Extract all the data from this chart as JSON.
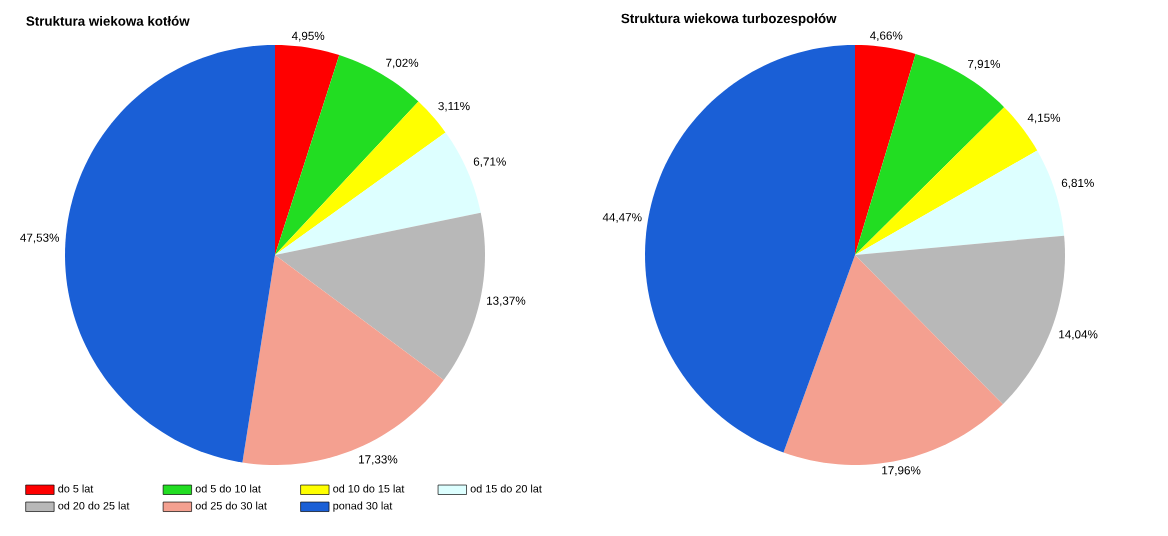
{
  "chart_data": [
    {
      "type": "pie",
      "title": "Struktura wiekowa kotłów",
      "legend": "bottom",
      "categories": [
        "do 5 lat",
        "od 5 do 10 lat",
        "od 10 do 15 lat",
        "od 15 do 20 lat",
        "od 20 do 25 lat",
        "od 25 do 30 lat",
        "ponad 30 lat"
      ],
      "values": [
        4.95,
        7.02,
        3.11,
        6.71,
        13.37,
        17.33,
        47.53
      ],
      "value_labels": [
        "4,95%",
        "7,02%",
        "3,11%",
        "6,71%",
        "13,37%",
        "17,33%",
        "47,53%"
      ],
      "colors": [
        "#ff0000",
        "#22dd22",
        "#ffff00",
        "#ddffff",
        "#b8b8b8",
        "#f4a090",
        "#1a5fd6"
      ]
    },
    {
      "type": "pie",
      "title": "Struktura wiekowa turbozespołów",
      "categories": [
        null,
        null,
        null,
        null,
        null,
        null,
        null
      ],
      "values": [
        4.66,
        7.91,
        4.15,
        6.81,
        14.04,
        17.96,
        44.47
      ],
      "value_labels": [
        "4,66%",
        "7,91%",
        "4,15%",
        "6,81%",
        "14,04%",
        "17,96%",
        "44,47%"
      ],
      "colors": [
        "#ff0000",
        "#22dd22",
        "#ffff00",
        "#ddffff",
        "#b8b8b8",
        "#f4a090",
        "#1a5fd6"
      ]
    }
  ]
}
